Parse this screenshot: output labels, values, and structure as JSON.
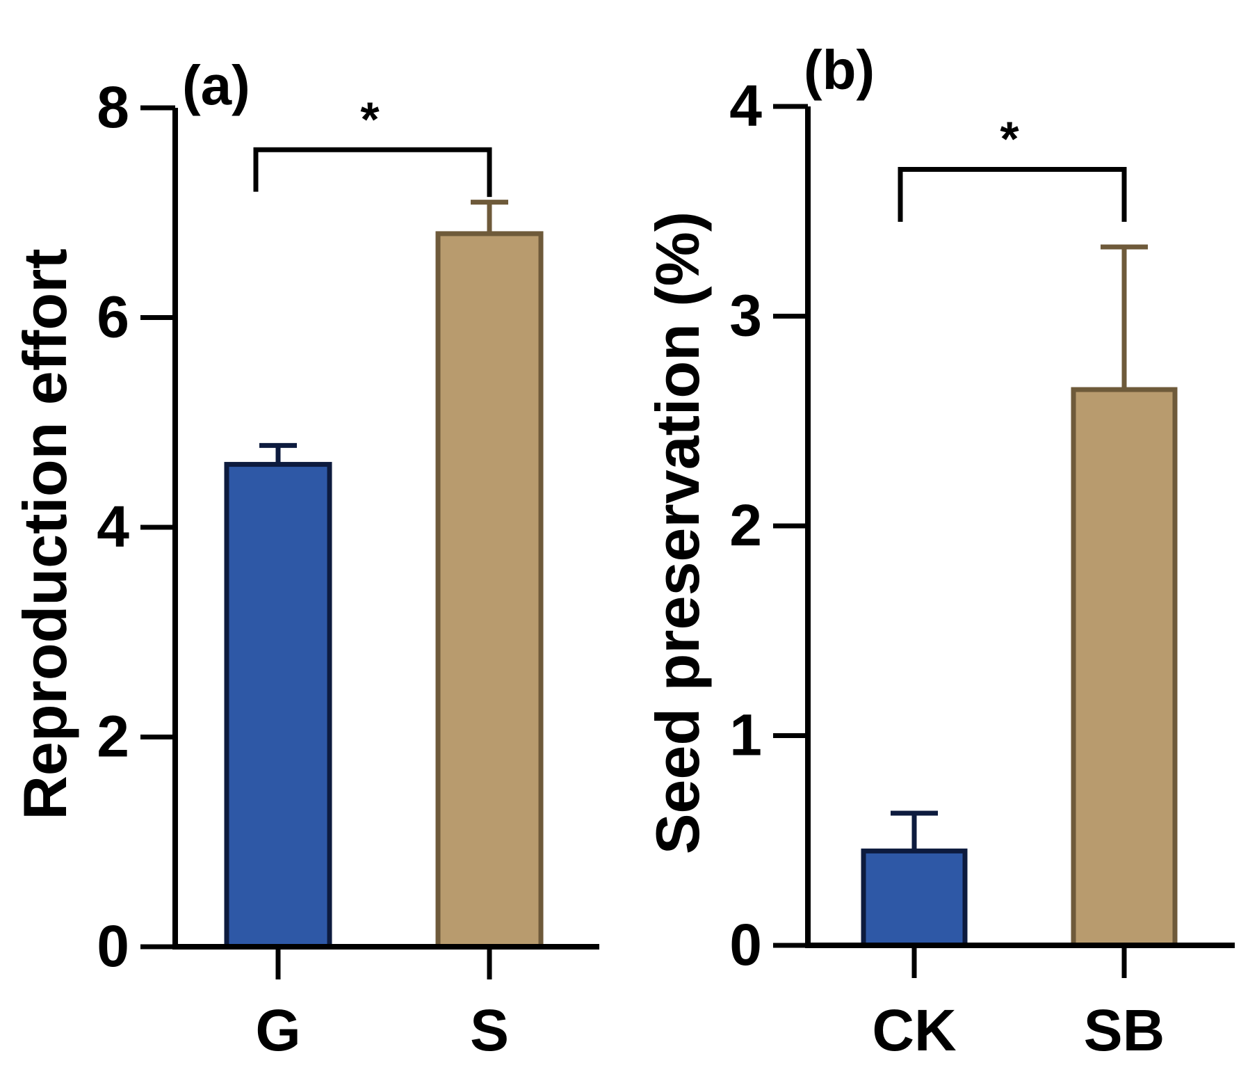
{
  "chart_data": [
    {
      "type": "bar",
      "panel_label": "(a)",
      "ylabel": "Reproduction effort",
      "xlabel": "",
      "ylim": [
        0,
        8
      ],
      "yticks": [
        0,
        2,
        4,
        6,
        8
      ],
      "ytick_labels": [
        "0",
        "2",
        "4",
        "6",
        "8"
      ],
      "categories": [
        "G",
        "S"
      ],
      "values": [
        4.6,
        6.8
      ],
      "errors": [
        0.18,
        0.3
      ],
      "colors": [
        "#2E58A6",
        "#B89B6E"
      ],
      "edge_colors": [
        "#0D1B3E",
        "#6E5A3A"
      ],
      "significance": {
        "label": "*",
        "bracket_y": 7.6,
        "left_drop_y": 7.2,
        "right_drop_y": 7.15
      }
    },
    {
      "type": "bar",
      "panel_label": "(b)",
      "ylabel": "Seed preservation (%)",
      "xlabel": "",
      "ylim": [
        0,
        4
      ],
      "yticks": [
        0,
        1,
        2,
        3,
        4
      ],
      "ytick_labels": [
        "0",
        "1",
        "2",
        "3",
        "4"
      ],
      "categories": [
        "CK",
        "SB"
      ],
      "values": [
        0.45,
        2.65
      ],
      "errors": [
        0.18,
        0.68
      ],
      "colors": [
        "#2E58A6",
        "#B89B6E"
      ],
      "edge_colors": [
        "#0D1B3E",
        "#6E5A3A"
      ],
      "significance": {
        "label": "*",
        "bracket_y": 3.7,
        "left_drop_y": 3.45,
        "right_drop_y": 3.45
      }
    }
  ]
}
